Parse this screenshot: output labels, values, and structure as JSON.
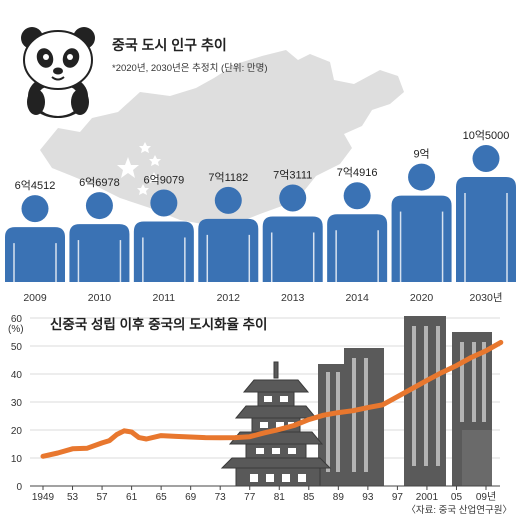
{
  "top": {
    "title": "중국 도시 인구 추이",
    "note": "*2020년, 2030년은 추정치 (단위: 만명)"
  },
  "bottom": {
    "title": "신중국 성립 이후 중국의 도시화율 추이",
    "source": "〈자료: 중국 산업연구원〉"
  },
  "colors": {
    "figure": "#3a72b4",
    "line": "#e8772e",
    "map": "#d9d9d9",
    "buildings": "#555555",
    "grid": "#cfcfcf"
  },
  "chart_data": [
    {
      "type": "bar",
      "title": "중국 도시 인구 추이",
      "categories": [
        "2009",
        "2010",
        "2011",
        "2012",
        "2013",
        "2014",
        "2020",
        "2030년"
      ],
      "values": [
        64512,
        66978,
        69079,
        71182,
        73111,
        74916,
        90000,
        105000
      ],
      "labels": [
        "6억4512",
        "6억6978",
        "6억9079",
        "7억1182",
        "7억3111",
        "7억4916",
        "9억",
        "10억5000"
      ],
      "note": "*2020년, 2030년은 추정치 (단위: 만명)"
    },
    {
      "type": "line",
      "title": "신중국 성립 이후 중국의 도시화율 추이",
      "ylabel": "(%)",
      "ylim": [
        0,
        60
      ],
      "yticks": [
        "0",
        "10",
        "20",
        "30",
        "40",
        "50",
        "60"
      ],
      "xticks": [
        "1949",
        "53",
        "57",
        "61",
        "65",
        "69",
        "73",
        "77",
        "81",
        "85",
        "89",
        "93",
        "97",
        "2001",
        "05",
        "09년"
      ],
      "xticks_years": [
        1949,
        1953,
        1957,
        1961,
        1965,
        1969,
        1973,
        1977,
        1981,
        1985,
        1989,
        1993,
        1997,
        2001,
        2005,
        2009
      ],
      "x": [
        1949,
        1951,
        1953,
        1955,
        1957,
        1958,
        1959,
        1960,
        1961,
        1962,
        1963,
        1965,
        1967,
        1969,
        1971,
        1973,
        1975,
        1977,
        1979,
        1981,
        1983,
        1985,
        1987,
        1989,
        1991,
        1993,
        1995,
        1997,
        1999,
        2001,
        2003,
        2005,
        2007,
        2009,
        2011
      ],
      "y": [
        10.6,
        11.8,
        13.3,
        13.5,
        15.4,
        16.2,
        18.4,
        19.7,
        19.3,
        17.3,
        16.8,
        18.0,
        17.7,
        17.5,
        17.3,
        17.2,
        17.3,
        17.6,
        19.0,
        20.2,
        21.6,
        23.7,
        25.3,
        26.2,
        26.9,
        28.0,
        29.0,
        31.9,
        34.8,
        37.7,
        40.5,
        43.0,
        45.9,
        48.3,
        51.3
      ],
      "source": "〈자료: 중국 산업연구원〉"
    }
  ]
}
